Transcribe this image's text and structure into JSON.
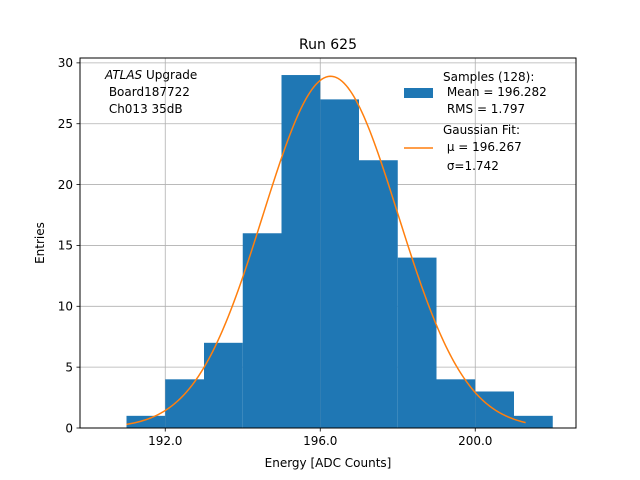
{
  "chart_data": {
    "type": "bar",
    "title": "Run 625",
    "xlabel": "Energy [ADC Counts]",
    "ylabel": "Entries",
    "xlim": [
      189.8,
      202.6
    ],
    "ylim": [
      0,
      30.4
    ],
    "grid": true,
    "xticks": [
      192.0,
      196.0,
      200.0
    ],
    "xtick_labels": [
      "192.0",
      "196.0",
      "200.0"
    ],
    "yticks": [
      0,
      5,
      10,
      15,
      20,
      25,
      30
    ],
    "ytick_labels": [
      "0",
      "5",
      "10",
      "15",
      "20",
      "25",
      "30"
    ],
    "histogram": {
      "bin_edges": [
        191.0,
        192.0,
        193.0,
        194.0,
        195.0,
        196.0,
        197.0,
        198.0,
        199.0,
        200.0,
        201.0,
        202.0
      ],
      "counts": [
        1,
        4,
        7,
        16,
        29,
        27,
        22,
        14,
        4,
        3,
        1
      ],
      "color": "#1f77b4"
    },
    "fit": {
      "type": "gaussian",
      "mu": 196.267,
      "sigma": 1.742,
      "amplitude": 28.9,
      "x_range": [
        191.0,
        201.3
      ],
      "color": "#ff7f0e"
    },
    "annotation": {
      "italic": "ATLAS",
      "line1_rest": " Upgrade",
      "line2": " Board187722",
      "line3": " Ch013 35dB"
    },
    "legend": {
      "placement": "top-right",
      "samples_title": "Samples (128):",
      "samples_mean": " Mean = 196.282",
      "samples_rms": " RMS = 1.797",
      "fit_title": "Gaussian Fit:",
      "fit_mu": " μ = 196.267",
      "fit_sigma": " σ=1.742"
    }
  }
}
